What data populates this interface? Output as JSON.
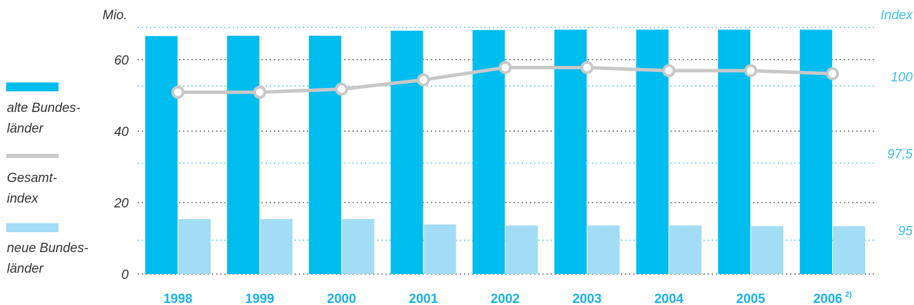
{
  "chart_data": {
    "type": "bar",
    "categories": [
      "1998",
      "1999",
      "2000",
      "2001",
      "2002",
      "2003",
      "2004",
      "2005",
      "2006"
    ],
    "category_footnote": {
      "2006": "2)"
    },
    "left_axis": {
      "unit_label": "Mio.",
      "ticks": [
        "0",
        "20",
        "40",
        "60"
      ],
      "tick_values": [
        0,
        20,
        40,
        60
      ],
      "ylim": [
        0,
        69
      ]
    },
    "right_axis": {
      "unit_label": "Index",
      "ticks": [
        "95",
        "97,5",
        "100"
      ],
      "tick_values": [
        95,
        97.5,
        100
      ],
      "ylim": [
        93.9,
        101.9
      ]
    },
    "series": [
      {
        "name": "alte Bundesländer",
        "type": "bar",
        "axis": "left",
        "color": "#00bdf0",
        "values": [
          66.6,
          66.7,
          66.7,
          68.1,
          68.3,
          68.4,
          68.4,
          68.4,
          68.4
        ]
      },
      {
        "name": "neue Bundesländer",
        "type": "bar",
        "axis": "left",
        "color": "#a3dcf5",
        "values": [
          15.4,
          15.4,
          15.4,
          13.9,
          13.6,
          13.6,
          13.6,
          13.4,
          13.4
        ]
      },
      {
        "name": "Gesamtindex",
        "type": "line",
        "axis": "right",
        "color": "#c8c8c8",
        "values": [
          99.8,
          99.8,
          99.9,
          100.2,
          100.6,
          100.6,
          100.5,
          100.5,
          100.4
        ]
      }
    ],
    "legend": [
      {
        "text_lines": [
          "alte Bundes-",
          "länder"
        ],
        "color": "#00bdf0"
      },
      {
        "text_lines": [
          "Gesamt-",
          "index"
        ],
        "color": "#c8c8c8"
      },
      {
        "text_lines": [
          "neue Bundes-",
          "länder"
        ],
        "color": "#a3dcf5"
      }
    ],
    "legend_position": "left",
    "grid": "dotted",
    "grid_color_left": "#444444",
    "grid_color_right": "#3fbfe6"
  }
}
